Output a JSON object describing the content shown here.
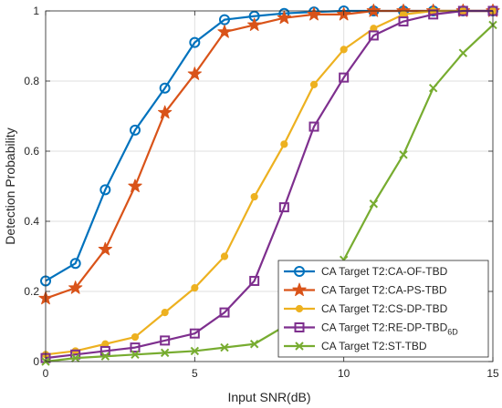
{
  "chart_data": {
    "type": "line",
    "xlabel": "Input SNR(dB)",
    "ylabel": "Detection Probability",
    "xlim": [
      0,
      15
    ],
    "ylim": [
      0,
      1
    ],
    "xticks": [
      0,
      5,
      10,
      15
    ],
    "yticks": [
      0,
      0.2,
      0.4,
      0.6,
      0.8,
      1
    ],
    "xtick_labels": [
      "0",
      "5",
      "10",
      "15"
    ],
    "ytick_labels": [
      "0",
      "0.2",
      "0.4",
      "0.6",
      "0.8",
      "1"
    ],
    "grid": true,
    "legend_position": "bottom-right",
    "x": [
      0,
      1,
      2,
      3,
      4,
      5,
      6,
      7,
      8,
      9,
      10,
      11,
      12,
      13,
      14,
      15
    ],
    "series": [
      {
        "name": "CA Target T2:CA-OF-TBD",
        "color": "#0072BD",
        "marker": "circle",
        "values": [
          0.23,
          0.28,
          0.49,
          0.66,
          0.78,
          0.91,
          0.975,
          0.985,
          0.993,
          0.997,
          1.0,
          1.0,
          1.0,
          1.0,
          1.0,
          1.0
        ]
      },
      {
        "name": "CA Target T2:CA-PS-TBD",
        "color": "#D95319",
        "marker": "star",
        "values": [
          0.18,
          0.21,
          0.32,
          0.5,
          0.71,
          0.82,
          0.94,
          0.96,
          0.98,
          0.99,
          0.99,
          1.0,
          1.0,
          1.0,
          1.0,
          1.0
        ]
      },
      {
        "name": "CA Target T2:CS-DP-TBD",
        "color": "#EDB120",
        "marker": "dot",
        "values": [
          0.02,
          0.03,
          0.05,
          0.07,
          0.14,
          0.21,
          0.3,
          0.47,
          0.62,
          0.79,
          0.89,
          0.95,
          0.99,
          1.0,
          1.0,
          1.0
        ]
      },
      {
        "name": "CA Target T2:RE-DP-TBD",
        "name_subscript": "6D",
        "color": "#7E2F8E",
        "marker": "square",
        "values": [
          0.01,
          0.02,
          0.03,
          0.04,
          0.06,
          0.08,
          0.14,
          0.23,
          0.44,
          0.67,
          0.81,
          0.93,
          0.97,
          0.99,
          1.0,
          1.0
        ]
      },
      {
        "name": "CA Target T2:ST-TBD",
        "color": "#77AC30",
        "marker": "x",
        "values": [
          0.0,
          0.01,
          0.015,
          0.02,
          0.025,
          0.03,
          0.04,
          0.05,
          0.1,
          0.17,
          0.29,
          0.45,
          0.59,
          0.78,
          0.88,
          0.96
        ]
      }
    ]
  }
}
